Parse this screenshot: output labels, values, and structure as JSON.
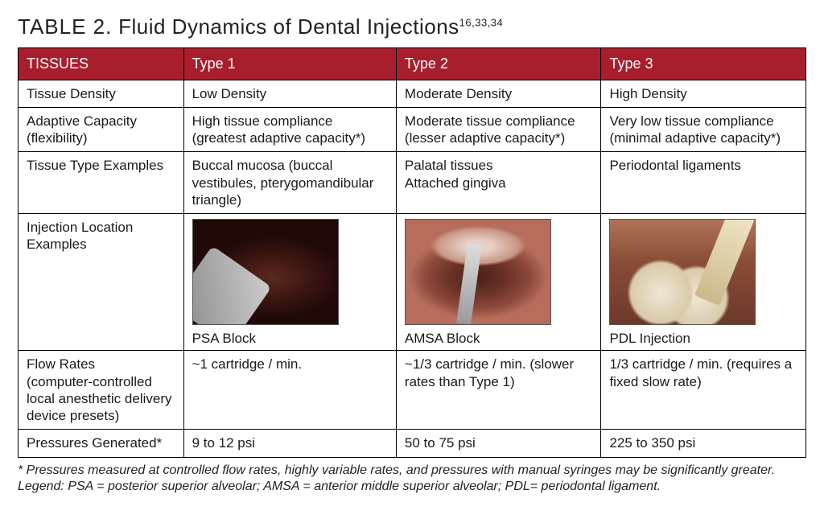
{
  "title": {
    "prefix": "TABLE 2.",
    "text": "Fluid Dynamics of Dental Injections",
    "refs": "16,33,34"
  },
  "header_bg": "#a81e2d",
  "columns": [
    "TISSUES",
    "Type 1",
    "Type 2",
    "Type 3"
  ],
  "rows": {
    "tissue_density": {
      "label": "Tissue Density",
      "t1": "Low Density",
      "t2": "Moderate Density",
      "t3": "High Density"
    },
    "adaptive_capacity": {
      "label": "Adaptive Capacity (flexibility)",
      "t1": "High tissue compliance (greatest adaptive capacity*)",
      "t2": "Moderate tissue compliance (lesser adaptive capacity*)",
      "t3": "Very low tissue compliance (minimal adaptive capacity*)"
    },
    "tissue_type_examples": {
      "label": "Tissue Type Examples",
      "t1": "Buccal mucosa (buccal vestibules, pterygomandibular triangle)",
      "t2": "Palatal tissues\nAttached gingiva",
      "t3": "Periodontal ligaments"
    },
    "injection_location": {
      "label": "Injection Location Examples",
      "t1_caption": "PSA Block",
      "t2_caption": "AMSA Block",
      "t3_caption": "PDL Injection"
    },
    "flow_rates": {
      "label": "Flow Rates\n(computer-controlled local anesthetic delivery device presets)",
      "t1": "~1 cartridge / min.",
      "t2": "~1/3 cartridge / min. (slower rates than Type 1)",
      "t3": "1/3 cartridge / min. (requires a fixed slow rate)"
    },
    "pressures": {
      "label": "Pressures Generated*",
      "t1": "9 to 12 psi",
      "t2": "50 to 75 psi",
      "t3": "225 to 350 psi"
    }
  },
  "footnotes": {
    "line1": "* Pressures measured at controlled flow rates, highly variable rates, and pressures with manual syringes may be significantly greater.",
    "line2": "Legend: PSA = posterior superior alveolar; AMSA = anterior middle superior alveolar; PDL= periodontal ligament."
  }
}
